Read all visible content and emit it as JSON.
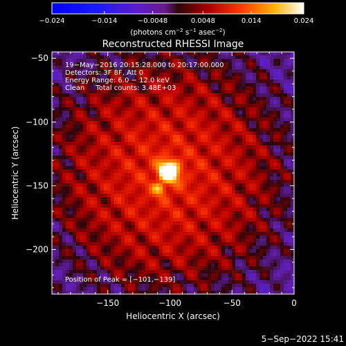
{
  "chart_data": {
    "type": "heatmap",
    "title": "Reconstructed RHESSI Image",
    "xlabel": "Heliocentric X (arcsec)",
    "ylabel": "Heliocentric Y (arcsec)",
    "xlim": [
      -195,
      0
    ],
    "ylim": [
      -235,
      -45
    ],
    "x_ticks": [
      -150,
      -100,
      -50,
      0
    ],
    "x_tick_labels": [
      "−150",
      "−100",
      "−50",
      "0"
    ],
    "y_ticks": [
      -50,
      -100,
      -150,
      -200
    ],
    "y_tick_labels": [
      "−50",
      "−100",
      "−150",
      "−200"
    ],
    "colorbar": {
      "range": [
        -0.024,
        0.024
      ],
      "ticks": [
        -0.024,
        -0.014,
        -0.0048,
        0.0048,
        0.014,
        0.024
      ],
      "tick_labels": [
        "−0.024",
        "−0.014",
        "−0.0048",
        "0.0048",
        "0.014",
        "0.024"
      ],
      "unit_parts": [
        "(photons cm",
        "−2",
        " s",
        "−1",
        " asec",
        "−2",
        ")"
      ]
    },
    "annotations": [
      "19−May−2016 20:15:28.000 to 20:17:00.000",
      "Detectors: 3F 8F, Att 0",
      "Energy Range: 6.0 − 12.0 keV",
      "Clean     Total counts: 3.48E+03"
    ],
    "peak_label": "Position of Peak = [−101,−139]",
    "peak": {
      "x": -101,
      "y": -139,
      "value": 0.024
    },
    "secondary_source": {
      "x": -108,
      "y": -152,
      "value": 0.016
    },
    "grid": false,
    "legend": "colorbar-top"
  },
  "footer": {
    "timestamp": "5−Sep−2022 15:41"
  },
  "colors": {
    "background": "#000000",
    "axis": "#ffffff"
  }
}
